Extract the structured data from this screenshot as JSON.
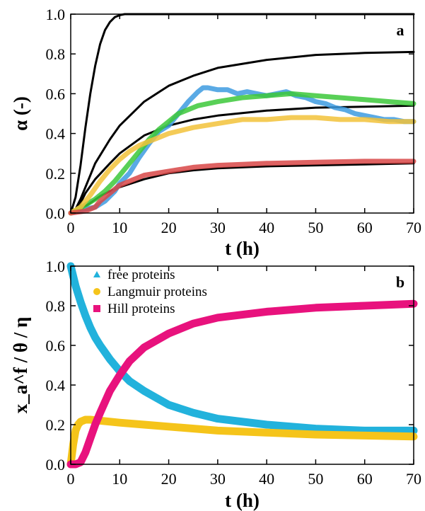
{
  "chart_data": [
    {
      "type": "line",
      "panel_label": "a",
      "xlabel": "t (h)",
      "ylabel": "α (-)",
      "xlim": [
        0,
        70
      ],
      "ylim": [
        0,
        1
      ],
      "xticks": [
        "0",
        "10",
        "20",
        "30",
        "40",
        "50",
        "60",
        "70"
      ],
      "yticks": [
        "0.0",
        "0.2",
        "0.4",
        "0.6",
        "0.8",
        "1.0"
      ],
      "series": [
        {
          "kind": "model",
          "color": "#000000",
          "x": [
            0,
            1,
            2,
            3,
            4,
            5,
            6,
            7,
            8,
            9,
            10,
            11,
            12,
            14,
            20,
            30,
            70
          ],
          "y": [
            0,
            0.08,
            0.24,
            0.43,
            0.6,
            0.74,
            0.85,
            0.92,
            0.96,
            0.985,
            0.995,
            1.0,
            1.0,
            1.0,
            1.0,
            1.0,
            1.0
          ]
        },
        {
          "kind": "model",
          "color": "#000000",
          "x": [
            0,
            1,
            2,
            3,
            5,
            8,
            10,
            15,
            20,
            25,
            30,
            40,
            50,
            60,
            70
          ],
          "y": [
            0,
            0.02,
            0.07,
            0.13,
            0.25,
            0.37,
            0.44,
            0.56,
            0.64,
            0.69,
            0.73,
            0.77,
            0.795,
            0.805,
            0.81
          ]
        },
        {
          "kind": "model",
          "color": "#000000",
          "x": [
            0,
            1,
            2,
            3,
            5,
            8,
            10,
            15,
            20,
            25,
            30,
            40,
            50,
            60,
            70
          ],
          "y": [
            0,
            0.015,
            0.05,
            0.1,
            0.17,
            0.25,
            0.3,
            0.39,
            0.44,
            0.47,
            0.49,
            0.515,
            0.53,
            0.535,
            0.54
          ]
        },
        {
          "kind": "model",
          "color": "#000000",
          "x": [
            0,
            2,
            4,
            6,
            8,
            10,
            15,
            20,
            25,
            30,
            40,
            50,
            60,
            70
          ],
          "y": [
            0,
            0.02,
            0.05,
            0.085,
            0.11,
            0.13,
            0.17,
            0.2,
            0.215,
            0.225,
            0.235,
            0.24,
            0.245,
            0.25
          ]
        },
        {
          "kind": "data",
          "color": "#3d9be0",
          "x": [
            0,
            3,
            5,
            7,
            9,
            10,
            12,
            14,
            16,
            18,
            20,
            22,
            24,
            26,
            27,
            28,
            30,
            32,
            34,
            36,
            38,
            40,
            42,
            44,
            46,
            48,
            50,
            52,
            54,
            56,
            58,
            60,
            62,
            64,
            66,
            68,
            70
          ],
          "y": [
            0,
            0.02,
            0.03,
            0.06,
            0.11,
            0.15,
            0.2,
            0.28,
            0.35,
            0.41,
            0.44,
            0.5,
            0.56,
            0.61,
            0.63,
            0.63,
            0.62,
            0.62,
            0.6,
            0.61,
            0.6,
            0.59,
            0.6,
            0.61,
            0.59,
            0.58,
            0.56,
            0.55,
            0.53,
            0.52,
            0.5,
            0.49,
            0.48,
            0.47,
            0.47,
            0.46,
            0.46
          ]
        },
        {
          "kind": "data",
          "color": "#3cc83a",
          "x": [
            0,
            3,
            5,
            7,
            9,
            10,
            12,
            14,
            16,
            18,
            20,
            22,
            24,
            26,
            28,
            30,
            35,
            40,
            45,
            50,
            55,
            60,
            65,
            70
          ],
          "y": [
            0,
            0.04,
            0.07,
            0.11,
            0.16,
            0.19,
            0.25,
            0.31,
            0.37,
            0.42,
            0.46,
            0.5,
            0.52,
            0.54,
            0.55,
            0.56,
            0.58,
            0.59,
            0.6,
            0.59,
            0.58,
            0.57,
            0.56,
            0.55
          ]
        },
        {
          "kind": "data",
          "color": "#f2c23a",
          "x": [
            0,
            2,
            4,
            6,
            8,
            10,
            12,
            14,
            16,
            18,
            20,
            25,
            30,
            35,
            40,
            45,
            50,
            55,
            60,
            65,
            70
          ],
          "y": [
            0,
            0.03,
            0.09,
            0.16,
            0.22,
            0.27,
            0.31,
            0.34,
            0.36,
            0.38,
            0.4,
            0.43,
            0.45,
            0.47,
            0.47,
            0.48,
            0.48,
            0.47,
            0.47,
            0.46,
            0.46
          ]
        },
        {
          "kind": "data",
          "color": "#d84646",
          "x": [
            0,
            3,
            5,
            6,
            8,
            10,
            12,
            15,
            20,
            25,
            30,
            35,
            40,
            50,
            60,
            70
          ],
          "y": [
            0,
            0.01,
            0.03,
            0.06,
            0.1,
            0.14,
            0.16,
            0.19,
            0.21,
            0.23,
            0.24,
            0.245,
            0.25,
            0.255,
            0.26,
            0.26
          ]
        }
      ]
    },
    {
      "type": "line",
      "panel_label": "b",
      "xlabel": "t (h)",
      "ylabel": "x_a^f / θ / η",
      "xlim": [
        0,
        70
      ],
      "ylim": [
        0,
        1
      ],
      "xticks": [
        "0",
        "10",
        "20",
        "30",
        "40",
        "50",
        "60",
        "70"
      ],
      "yticks": [
        "0.0",
        "0.2",
        "0.4",
        "0.6",
        "0.8",
        "1.0"
      ],
      "legend": {
        "placement": "top-left"
      },
      "series": [
        {
          "name": "free proteins",
          "marker": "triangle",
          "color": "#22b2dc",
          "x": [
            0,
            1,
            2,
            3,
            4,
            5,
            6,
            8,
            10,
            12,
            15,
            20,
            25,
            30,
            40,
            50,
            60,
            70
          ],
          "y": [
            1.0,
            0.9,
            0.82,
            0.75,
            0.69,
            0.64,
            0.6,
            0.53,
            0.47,
            0.42,
            0.37,
            0.3,
            0.26,
            0.23,
            0.2,
            0.18,
            0.17,
            0.17
          ]
        },
        {
          "name": "Langmuir proteins",
          "marker": "circle",
          "color": "#f5c41a",
          "x": [
            0,
            0.5,
            1,
            1.5,
            2,
            3,
            4,
            6,
            10,
            15,
            20,
            30,
            40,
            50,
            60,
            70
          ],
          "y": [
            0,
            0.1,
            0.17,
            0.2,
            0.215,
            0.225,
            0.225,
            0.22,
            0.21,
            0.2,
            0.19,
            0.17,
            0.16,
            0.15,
            0.145,
            0.14
          ]
        },
        {
          "name": "Hill proteins",
          "marker": "square",
          "color": "#e8127d",
          "x": [
            0,
            1,
            2,
            3,
            4,
            5,
            6,
            8,
            10,
            12,
            15,
            20,
            25,
            30,
            40,
            50,
            60,
            70
          ],
          "y": [
            0,
            0,
            0.01,
            0.06,
            0.13,
            0.2,
            0.26,
            0.37,
            0.45,
            0.52,
            0.59,
            0.66,
            0.71,
            0.74,
            0.77,
            0.79,
            0.8,
            0.81
          ]
        }
      ]
    }
  ]
}
